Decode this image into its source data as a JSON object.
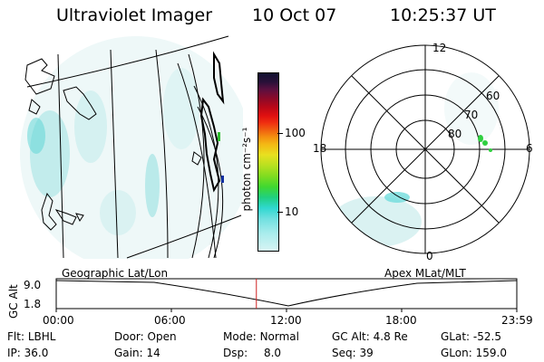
{
  "header": {
    "instrument": "Ultraviolet Imager",
    "date": "10 Oct 07",
    "time": "10:25:37 UT"
  },
  "colorbar": {
    "unit_label": "photon cm⁻²s⁻¹",
    "ticks": [
      "100",
      "10"
    ],
    "colors": [
      "#101030",
      "#2a1038",
      "#5a1040",
      "#8a0a2a",
      "#b80818",
      "#e01010",
      "#f03010",
      "#f06010",
      "#f49010",
      "#f4b814",
      "#e8e020",
      "#b8e020",
      "#80dc20",
      "#40d830",
      "#20d080",
      "#30d8d0",
      "#70e0e0",
      "#a8ecec",
      "#d8f4f4"
    ]
  },
  "polar": {
    "mlt_labels": [
      "12",
      "18",
      "6",
      "0"
    ],
    "lat_labels": [
      "60",
      "70",
      "80"
    ]
  },
  "timeline": {
    "left_title": "Geographic Lat/Lon",
    "right_title": "Apex MLat/MLT",
    "axis_title": "GC Alt",
    "y_ticks": [
      "9.0",
      "1.8"
    ],
    "x_ticks": [
      "00:00",
      "06:00",
      "12:00",
      "18:00",
      "23:59"
    ],
    "marker_time_hours": 10.43
  },
  "footer": {
    "row1": [
      {
        "label": "Flt:",
        "value": "LBHL"
      },
      {
        "label": "Door:",
        "value": "Open"
      },
      {
        "label": "Mode:",
        "value": "Normal"
      },
      {
        "label": "GC Alt:",
        "value": "4.8 Re"
      },
      {
        "label": "GLat:",
        "value": "-52.5"
      }
    ],
    "row2": [
      {
        "label": "IP:",
        "value": "36.0"
      },
      {
        "label": "Gain:",
        "value": "14"
      },
      {
        "label": "Dsp:",
        "value": "8.0"
      },
      {
        "label": "Seq:",
        "value": "39"
      },
      {
        "label": "GLon:",
        "value": "159.0"
      }
    ]
  }
}
